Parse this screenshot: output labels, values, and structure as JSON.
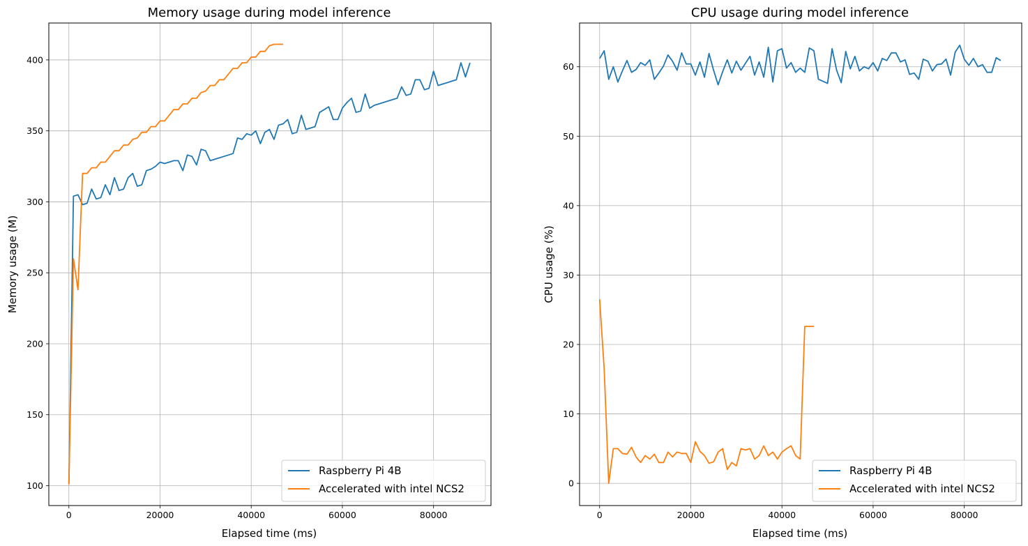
{
  "chart_data": [
    {
      "type": "line",
      "title": "Memory usage during model inference",
      "xlabel": "Elapsed time (ms)",
      "ylabel": "Memory usage (M)",
      "xlim": [
        -4400,
        92600
      ],
      "ylim": [
        86,
        426
      ],
      "xticks": [
        0,
        20000,
        40000,
        60000,
        80000
      ],
      "yticks": [
        100,
        150,
        200,
        250,
        300,
        350,
        400
      ],
      "grid": true,
      "legend_position": "lower-right",
      "series": [
        {
          "name": "Raspberry Pi 4B",
          "color": "#1f77b4",
          "x": [
            0,
            1000,
            2000,
            3000,
            4000,
            5000,
            6000,
            7000,
            8000,
            9000,
            10000,
            11000,
            12000,
            13000,
            14000,
            15000,
            16000,
            17000,
            18000,
            19000,
            20000,
            21000,
            22000,
            23000,
            24000,
            25000,
            26000,
            27000,
            28000,
            29000,
            30000,
            31000,
            32000,
            33000,
            34000,
            35000,
            36000,
            37000,
            38000,
            39000,
            40000,
            41000,
            42000,
            43000,
            44000,
            45000,
            46000,
            47000,
            48000,
            49000,
            50000,
            51000,
            52000,
            53000,
            54000,
            55000,
            56000,
            57000,
            58000,
            59000,
            60000,
            61000,
            62000,
            63000,
            64000,
            65000,
            66000,
            67000,
            68000,
            69000,
            70000,
            71000,
            72000,
            73000,
            74000,
            75000,
            76000,
            77000,
            78000,
            79000,
            80000,
            81000,
            82000,
            83000,
            84000,
            85000,
            86000,
            87000,
            88000
          ],
          "values": [
            101,
            304,
            305,
            298,
            299,
            309,
            302,
            303,
            312,
            305,
            317,
            308,
            309,
            317,
            320,
            311,
            312,
            322,
            323,
            325,
            328,
            327,
            328,
            329,
            329,
            322,
            333,
            332,
            326,
            337,
            336,
            329,
            330,
            331,
            332,
            333,
            334,
            345,
            344,
            348,
            347,
            350,
            341,
            349,
            351,
            344,
            354,
            355,
            358,
            348,
            349,
            361,
            351,
            352,
            353,
            363,
            365,
            367,
            358,
            358,
            366,
            370,
            373,
            363,
            364,
            376,
            366,
            368,
            369,
            370,
            371,
            372,
            373,
            381,
            375,
            376,
            386,
            386,
            379,
            380,
            392,
            382,
            383,
            384,
            385,
            386,
            398,
            388,
            398
          ]
        },
        {
          "name": "Accelerated with intel NCS2",
          "color": "#ff7f0e",
          "x": [
            0,
            1000,
            2000,
            3000,
            4000,
            5000,
            6000,
            7000,
            8000,
            9000,
            10000,
            11000,
            12000,
            13000,
            14000,
            15000,
            16000,
            17000,
            18000,
            19000,
            20000,
            21000,
            22000,
            23000,
            24000,
            25000,
            26000,
            27000,
            28000,
            29000,
            30000,
            31000,
            32000,
            33000,
            34000,
            35000,
            36000,
            37000,
            38000,
            39000,
            40000,
            41000,
            42000,
            43000,
            44000,
            45000,
            46000,
            47000
          ],
          "values": [
            101,
            260,
            238,
            320,
            320,
            324,
            324,
            328,
            328,
            332,
            336,
            336,
            340,
            340,
            344,
            345,
            349,
            349,
            353,
            353,
            357,
            357,
            361,
            365,
            365,
            369,
            369,
            373,
            373,
            377,
            378,
            382,
            382,
            386,
            386,
            390,
            394,
            394,
            398,
            398,
            402,
            402,
            406,
            406,
            410,
            411,
            411,
            411
          ]
        }
      ]
    },
    {
      "type": "line",
      "title": "CPU usage during model inference",
      "xlabel": "Elapsed time (ms)",
      "ylabel": "CPU usage (%)",
      "xlim": [
        -4400,
        92600
      ],
      "ylim": [
        -3.2,
        66.3
      ],
      "xticks": [
        0,
        20000,
        40000,
        60000,
        80000
      ],
      "yticks": [
        0,
        10,
        20,
        30,
        40,
        50,
        60
      ],
      "grid": true,
      "legend_position": "lower-right",
      "series": [
        {
          "name": "Raspberry Pi 4B",
          "color": "#1f77b4",
          "x": [
            0,
            1000,
            2000,
            3000,
            4000,
            5000,
            6000,
            7000,
            8000,
            9000,
            10000,
            11000,
            12000,
            13000,
            14000,
            15000,
            16000,
            17000,
            18000,
            19000,
            20000,
            21000,
            22000,
            23000,
            24000,
            25000,
            26000,
            27000,
            28000,
            29000,
            30000,
            31000,
            32000,
            33000,
            34000,
            35000,
            36000,
            37000,
            38000,
            39000,
            40000,
            41000,
            42000,
            43000,
            44000,
            45000,
            46000,
            47000,
            48000,
            49000,
            50000,
            51000,
            52000,
            53000,
            54000,
            55000,
            56000,
            57000,
            58000,
            59000,
            60000,
            61000,
            62000,
            63000,
            64000,
            65000,
            66000,
            67000,
            68000,
            69000,
            70000,
            71000,
            72000,
            73000,
            74000,
            75000,
            76000,
            77000,
            78000,
            79000,
            80000,
            81000,
            82000,
            83000,
            84000,
            85000,
            86000,
            87000,
            88000
          ],
          "values": [
            61.2,
            62.3,
            58.2,
            60.0,
            57.8,
            59.4,
            60.9,
            59.2,
            59.6,
            60.6,
            60.2,
            61.0,
            58.2,
            59.1,
            60.1,
            61.7,
            60.8,
            59.5,
            62.0,
            60.4,
            60.4,
            58.8,
            60.7,
            58.5,
            61.9,
            59.5,
            57.4,
            59.3,
            61.0,
            59.1,
            60.8,
            59.5,
            60.5,
            61.5,
            58.8,
            60.7,
            58.5,
            62.8,
            57.8,
            62.3,
            62.6,
            59.8,
            60.6,
            59.2,
            59.8,
            59.2,
            62.7,
            62.3,
            58.2,
            57.9,
            57.6,
            62.6,
            59.5,
            57.7,
            62.2,
            59.7,
            61.5,
            59.4,
            60.0,
            59.7,
            60.6,
            59.4,
            61.2,
            60.9,
            62.0,
            62.0,
            60.7,
            61.0,
            58.9,
            59.1,
            58.2,
            61.1,
            60.8,
            59.4,
            60.3,
            60.4,
            61.1,
            58.8,
            62.1,
            63.1,
            61.1,
            60.2,
            61.2,
            60.0,
            60.3,
            59.2,
            59.2,
            61.3,
            60.9
          ]
        },
        {
          "name": "Accelerated with intel NCS2",
          "color": "#ff7f0e",
          "x": [
            0,
            1000,
            2000,
            3000,
            4000,
            5000,
            6000,
            7000,
            8000,
            9000,
            10000,
            11000,
            12000,
            13000,
            14000,
            15000,
            16000,
            17000,
            18000,
            19000,
            20000,
            21000,
            22000,
            23000,
            24000,
            25000,
            26000,
            27000,
            28000,
            29000,
            30000,
            31000,
            32000,
            33000,
            34000,
            35000,
            36000,
            37000,
            38000,
            39000,
            40000,
            41000,
            42000,
            43000,
            44000,
            45000,
            46000,
            47000
          ],
          "values": [
            26.5,
            16.5,
            0.0,
            5.0,
            5.0,
            4.3,
            4.2,
            5.2,
            3.8,
            3.0,
            4.0,
            3.5,
            4.2,
            3.0,
            3.0,
            4.5,
            3.8,
            4.5,
            4.3,
            4.3,
            3.0,
            6.0,
            4.6,
            4.0,
            2.9,
            3.1,
            4.5,
            5.0,
            2.0,
            3.0,
            2.5,
            5.0,
            4.8,
            5.0,
            3.5,
            4.0,
            5.4,
            4.0,
            4.5,
            3.5,
            4.5,
            5.0,
            5.4,
            4.0,
            3.5,
            22.6,
            22.6,
            22.6
          ]
        }
      ]
    }
  ]
}
